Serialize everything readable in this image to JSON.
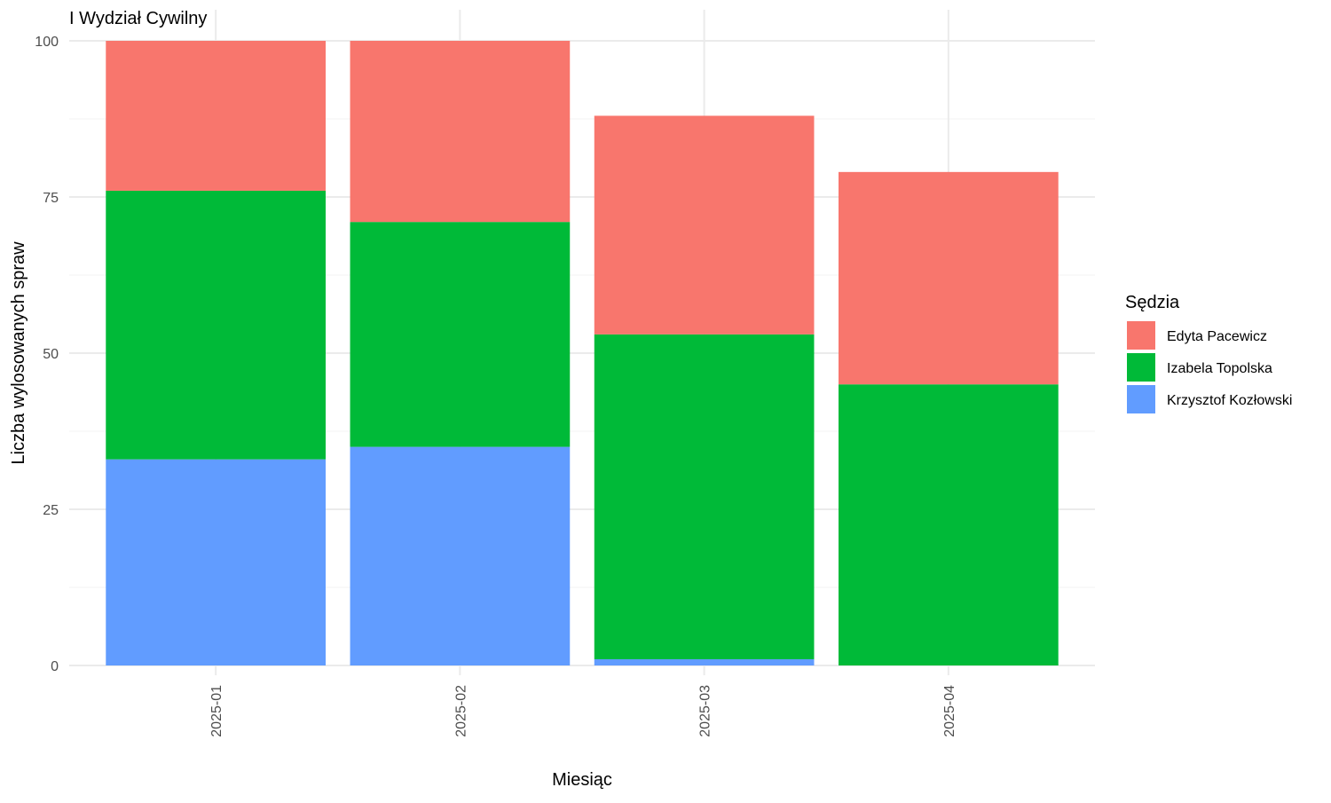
{
  "chart_data": {
    "type": "bar",
    "stacked": true,
    "title": "I Wydział Cywilny",
    "xlabel": "Miesiąc",
    "ylabel": "Liczba wylosowanych spraw",
    "categories": [
      "2025-01",
      "2025-02",
      "2025-03",
      "2025-04"
    ],
    "series": [
      {
        "name": "Krzysztof Kozłowski",
        "color": "#619CFF",
        "values": [
          33,
          35,
          1,
          0
        ]
      },
      {
        "name": "Izabela Topolska",
        "color": "#00BA38",
        "values": [
          43,
          36,
          52,
          45
        ]
      },
      {
        "name": "Edyta Pacewicz",
        "color": "#F8766D",
        "values": [
          24,
          29,
          35,
          34
        ]
      }
    ],
    "ylim": [
      0,
      100
    ],
    "yticks": [
      0,
      25,
      50,
      75,
      100
    ],
    "grid": true,
    "legend": {
      "title": "Sędzia",
      "position": "right",
      "order": [
        "Edyta Pacewicz",
        "Izabela Topolska",
        "Krzysztof Kozłowski"
      ]
    }
  }
}
